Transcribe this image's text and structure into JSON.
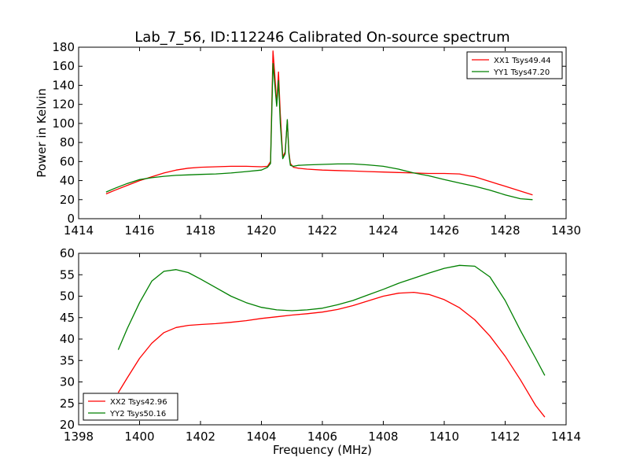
{
  "chart_data": [
    {
      "type": "line",
      "title": "Lab_7_56, ID:112246 Calibrated On-source spectrum",
      "xlabel": "",
      "ylabel": "Power in Kelvin",
      "xlim": [
        1414,
        1430
      ],
      "ylim": [
        0,
        180
      ],
      "xticks": [
        "1414",
        "1416",
        "1418",
        "1420",
        "1422",
        "1424",
        "1426",
        "1428",
        "1430"
      ],
      "yticks": [
        "0",
        "20",
        "40",
        "60",
        "80",
        "100",
        "120",
        "140",
        "160",
        "180"
      ],
      "grid": false,
      "legend_position": "top-right",
      "series": [
        {
          "name": "XX1 Tsys49.44",
          "color": "#ff0000",
          "x": [
            1414.9,
            1415.2,
            1415.6,
            1416.0,
            1416.4,
            1416.8,
            1417.2,
            1417.6,
            1418.0,
            1418.5,
            1419.0,
            1419.5,
            1420.0,
            1420.2,
            1420.3,
            1420.38,
            1420.44,
            1420.5,
            1420.56,
            1420.62,
            1420.7,
            1420.78,
            1420.85,
            1420.9,
            1420.95,
            1421.05,
            1421.2,
            1421.5,
            1422.0,
            1422.5,
            1423.0,
            1423.5,
            1424.0,
            1424.5,
            1425.0,
            1425.5,
            1426.0,
            1426.5,
            1426.8,
            1427.0,
            1427.5,
            1428.0,
            1428.5,
            1428.9
          ],
          "y": [
            26,
            30,
            35,
            40,
            44,
            48,
            51,
            53,
            54,
            54.5,
            55,
            55,
            54.5,
            55,
            60,
            176,
            150,
            120,
            154,
            110,
            65,
            70,
            103,
            70,
            58,
            54,
            53,
            52,
            51,
            50.5,
            50,
            49.5,
            49,
            48.5,
            48,
            47.5,
            47.5,
            47,
            45,
            44,
            39,
            34,
            29,
            25
          ]
        },
        {
          "name": "YY1 Tsys47.20",
          "color": "#008000",
          "x": [
            1414.9,
            1415.2,
            1415.6,
            1416.0,
            1416.4,
            1416.8,
            1417.2,
            1417.6,
            1418.0,
            1418.5,
            1419.0,
            1419.5,
            1420.0,
            1420.2,
            1420.3,
            1420.38,
            1420.44,
            1420.5,
            1420.56,
            1420.62,
            1420.7,
            1420.78,
            1420.85,
            1420.9,
            1420.95,
            1421.05,
            1421.2,
            1421.5,
            1422.0,
            1422.5,
            1423.0,
            1423.5,
            1424.0,
            1424.5,
            1425.0,
            1425.5,
            1426.0,
            1426.5,
            1427.0,
            1427.5,
            1428.0,
            1428.5,
            1428.9
          ],
          "y": [
            28,
            32,
            37,
            41,
            43,
            44.5,
            45.5,
            46,
            46.5,
            47,
            48,
            49.5,
            51,
            54,
            58,
            163,
            140,
            118,
            145,
            100,
            63,
            68,
            104,
            68,
            56,
            55,
            56,
            56.5,
            57,
            57.5,
            57.5,
            56.5,
            55,
            52,
            48,
            45,
            41,
            37.5,
            34,
            30,
            25,
            21,
            20
          ]
        }
      ]
    },
    {
      "type": "line",
      "title": "",
      "xlabel": "Frequency (MHz)",
      "ylabel": "",
      "xlim": [
        1398,
        1414
      ],
      "ylim": [
        20,
        60
      ],
      "xticks": [
        "1398",
        "1400",
        "1402",
        "1404",
        "1406",
        "1408",
        "1410",
        "1412",
        "1414"
      ],
      "yticks": [
        "20",
        "25",
        "30",
        "35",
        "40",
        "45",
        "50",
        "55",
        "60"
      ],
      "grid": false,
      "legend_position": "bottom-left",
      "series": [
        {
          "name": "XX2 Tsys42.96",
          "color": "#ff0000",
          "x": [
            1399.3,
            1399.6,
            1400.0,
            1400.4,
            1400.8,
            1401.2,
            1401.6,
            1402.0,
            1402.5,
            1403.0,
            1403.5,
            1404.0,
            1404.5,
            1405.0,
            1405.5,
            1406.0,
            1406.5,
            1407.0,
            1407.5,
            1408.0,
            1408.5,
            1409.0,
            1409.5,
            1410.0,
            1410.5,
            1411.0,
            1411.5,
            1412.0,
            1412.5,
            1413.0,
            1413.3
          ],
          "y": [
            27.5,
            31,
            35.5,
            39,
            41.5,
            42.7,
            43.2,
            43.4,
            43.6,
            43.9,
            44.3,
            44.8,
            45.2,
            45.6,
            45.9,
            46.3,
            46.9,
            47.8,
            48.9,
            50,
            50.7,
            50.9,
            50.4,
            49.2,
            47.3,
            44.5,
            40.7,
            36,
            30.5,
            24.5,
            21.8
          ]
        },
        {
          "name": "YY2 Tsys50.16",
          "color": "#008000",
          "x": [
            1399.3,
            1399.6,
            1400.0,
            1400.4,
            1400.8,
            1401.2,
            1401.6,
            1402.0,
            1402.5,
            1403.0,
            1403.5,
            1404.0,
            1404.5,
            1405.0,
            1405.5,
            1406.0,
            1406.5,
            1407.0,
            1407.5,
            1408.0,
            1408.5,
            1409.0,
            1409.5,
            1410.0,
            1410.5,
            1411.0,
            1411.5,
            1412.0,
            1412.5,
            1413.0,
            1413.3
          ],
          "y": [
            37.5,
            42.5,
            48.5,
            53.5,
            55.8,
            56.2,
            55.5,
            54,
            52,
            50,
            48.5,
            47.4,
            46.8,
            46.6,
            46.8,
            47.2,
            48,
            49,
            50.3,
            51.6,
            53,
            54.2,
            55.4,
            56.5,
            57.2,
            57,
            54.5,
            49,
            42,
            35.5,
            31.5
          ]
        }
      ]
    }
  ]
}
